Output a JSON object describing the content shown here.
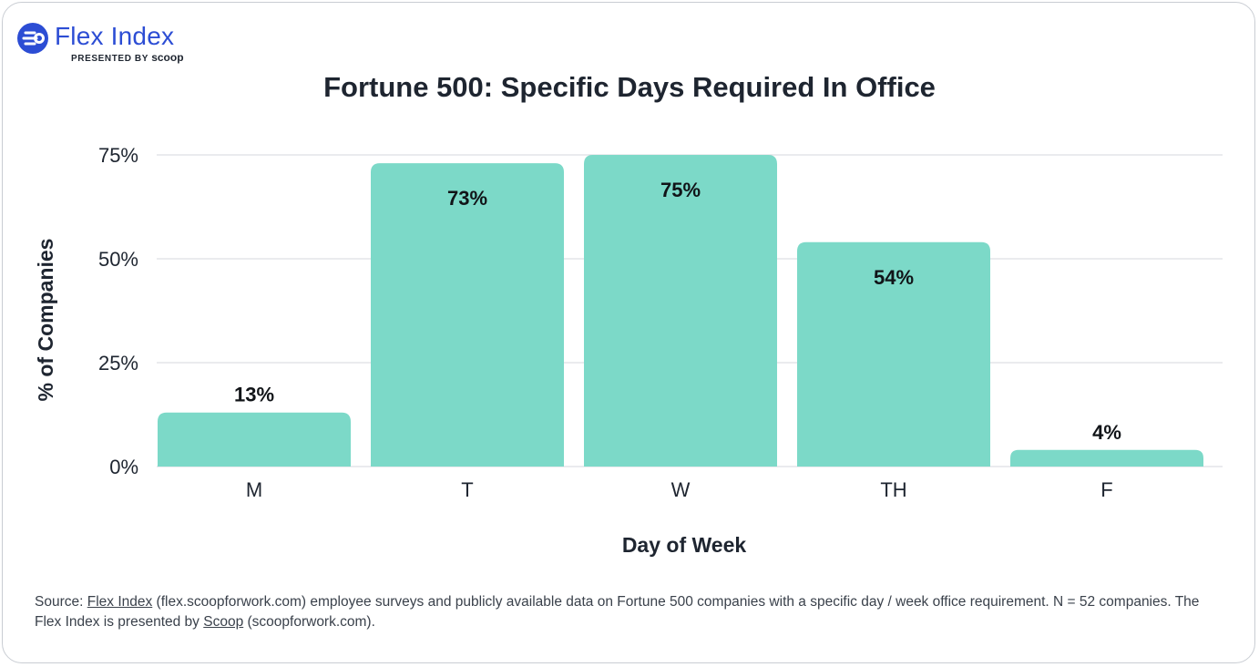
{
  "logo": {
    "name": "Flex Index",
    "presented_by": "PRESENTED BY",
    "brand": "scoop",
    "brand_color": "#2c4dd4"
  },
  "chart_data": {
    "type": "bar",
    "title": "Fortune 500: Specific Days Required In Office",
    "xlabel": "Day of Week",
    "ylabel": "% of Companies",
    "categories": [
      "M",
      "T",
      "W",
      "TH",
      "F"
    ],
    "values": [
      13,
      73,
      75,
      54,
      4
    ],
    "data_labels": [
      "13%",
      "73%",
      "75%",
      "54%",
      "4%"
    ],
    "ylim": [
      0,
      75
    ],
    "yticks": [
      0,
      25,
      50,
      75
    ],
    "ytick_labels": [
      "0%",
      "25%",
      "50%",
      "75%"
    ],
    "grid": true,
    "bar_color": "#7cd9c8",
    "grid_color": "#d4d7dc"
  },
  "footnote": {
    "prefix": "Source: ",
    "link1": "Flex Index",
    "middle": " (flex.scoopforwork.com) employee surveys and publicly available data on Fortune 500 companies with a specific day / week office requirement. N = 52 companies. The Flex Index is presented by ",
    "link2": "Scoop",
    "suffix": " (scoopforwork.com)."
  }
}
